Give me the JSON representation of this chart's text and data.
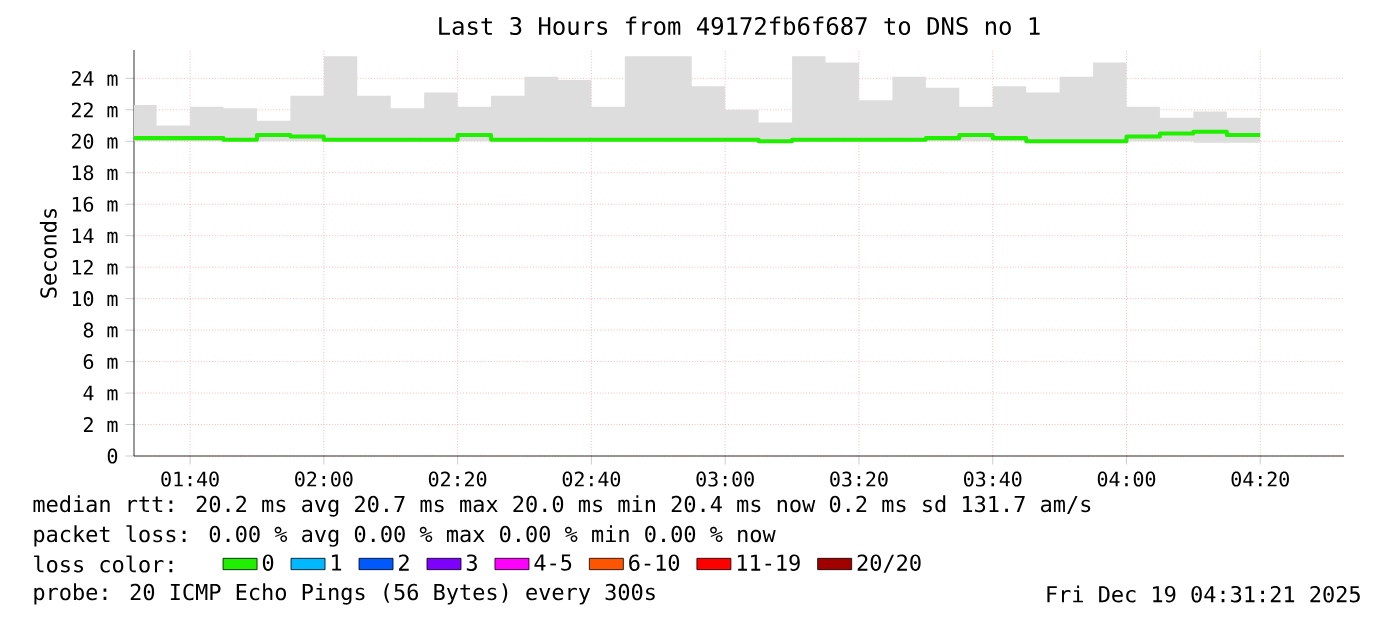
{
  "chart_data": {
    "type": "step",
    "title": "Last 3 Hours from 49172fb6f687 to DNS no 1",
    "ylabel": "Seconds",
    "x": [
      1.527,
      1.5833,
      1.6667,
      1.75,
      1.8333,
      1.9167,
      2.0,
      2.0833,
      2.1667,
      2.25,
      2.3333,
      2.4167,
      2.5,
      2.5833,
      2.6667,
      2.75,
      2.8333,
      2.9167,
      3.0,
      3.0833,
      3.1667,
      3.25,
      3.3333,
      3.4167,
      3.5,
      3.5833,
      3.6667,
      3.75,
      3.8333,
      3.9167,
      4.0,
      4.0833,
      4.1667,
      4.25,
      4.3333
    ],
    "series": [
      {
        "name": "0",
        "color": "#20f000",
        "values": [
          20.3,
          20.2,
          20.2,
          20.2,
          20.1,
          20.4,
          20.3,
          20.1,
          20.1,
          20.1,
          20.1,
          20.4,
          20.1,
          20.1,
          20.1,
          20.1,
          20.1,
          20.1,
          20.1,
          20.1,
          20.0,
          20.1,
          20.1,
          20.1,
          20.1,
          20.2,
          20.4,
          20.2,
          20.0,
          20.0,
          20.0,
          20.3,
          20.5,
          20.6,
          20.4
        ],
        "lower": [
          20.0,
          20.0,
          20.0,
          20.0,
          20.0,
          20.0,
          20.0,
          20.0,
          20.0,
          20.0,
          20.0,
          20.0,
          20.0,
          20.0,
          20.0,
          20.0,
          20.0,
          20.0,
          20.0,
          20.0,
          20.0,
          20.0,
          20.0,
          20.0,
          20.0,
          20.0,
          20.0,
          20.0,
          20.0,
          20.0,
          20.0,
          20.0,
          19.9,
          19.9,
          19.9
        ],
        "upper": [
          22.3,
          21.0,
          22.2,
          22.1,
          21.3,
          22.9,
          25.4,
          22.9,
          22.1,
          23.1,
          22.2,
          22.9,
          24.1,
          23.9,
          22.2,
          25.4,
          25.4,
          23.5,
          22.0,
          21.2,
          25.4,
          25.0,
          22.6,
          24.1,
          23.4,
          22.2,
          23.5,
          23.1,
          24.1,
          25.0,
          22.2,
          21.5,
          21.9,
          21.5,
          21.6
        ]
      },
      {
        "name": "1",
        "color": "#00b8ff",
        "values": [
          null,
          null,
          null,
          null,
          null,
          null,
          null,
          null,
          null,
          null,
          null,
          null,
          null,
          null,
          null,
          null,
          null,
          null,
          null,
          null,
          null,
          null,
          null,
          null,
          null,
          null,
          null,
          null,
          null,
          null,
          null,
          null,
          null,
          null,
          null
        ]
      },
      {
        "name": "2",
        "color": "#0059ff",
        "values": [
          null,
          null,
          null,
          null,
          null,
          null,
          null,
          null,
          null,
          null,
          null,
          null,
          null,
          null,
          null,
          null,
          null,
          null,
          null,
          null,
          null,
          null,
          null,
          null,
          null,
          null,
          null,
          null,
          null,
          null,
          null,
          null,
          null,
          null,
          null
        ]
      },
      {
        "name": "3",
        "color": "#7e00ff",
        "values": [
          null,
          null,
          null,
          null,
          null,
          null,
          null,
          null,
          null,
          null,
          null,
          null,
          null,
          null,
          null,
          null,
          null,
          null,
          null,
          null,
          null,
          null,
          null,
          null,
          null,
          null,
          null,
          null,
          null,
          null,
          null,
          null,
          null,
          null,
          null
        ]
      },
      {
        "name": "4-5",
        "color": "#ff00ff",
        "values": [
          null,
          null,
          null,
          null,
          null,
          null,
          null,
          null,
          null,
          null,
          null,
          null,
          null,
          null,
          null,
          null,
          null,
          null,
          null,
          null,
          null,
          null,
          null,
          null,
          null,
          null,
          null,
          null,
          null,
          null,
          null,
          null,
          null,
          null,
          null
        ]
      },
      {
        "name": "6-10",
        "color": "#ff5500",
        "values": [
          null,
          null,
          null,
          null,
          null,
          null,
          null,
          null,
          null,
          null,
          null,
          null,
          null,
          null,
          null,
          null,
          null,
          null,
          null,
          null,
          null,
          null,
          null,
          null,
          null,
          null,
          null,
          null,
          null,
          null,
          null,
          null,
          null,
          null,
          null
        ]
      },
      {
        "name": "11-19",
        "color": "#ff0000",
        "values": [
          null,
          null,
          null,
          null,
          null,
          null,
          null,
          null,
          null,
          null,
          null,
          null,
          null,
          null,
          null,
          null,
          null,
          null,
          null,
          null,
          null,
          null,
          null,
          null,
          null,
          null,
          null,
          null,
          null,
          null,
          null,
          null,
          null,
          null,
          null
        ]
      },
      {
        "name": "20/20",
        "color": "#a10000",
        "values": [
          null,
          null,
          null,
          null,
          null,
          null,
          null,
          null,
          null,
          null,
          null,
          null,
          null,
          null,
          null,
          null,
          null,
          null,
          null,
          null,
          null,
          null,
          null,
          null,
          null,
          null,
          null,
          null,
          null,
          null,
          null,
          null,
          null,
          null,
          null
        ]
      }
    ],
    "xlim": [
      1.527,
      4.542
    ],
    "ylim": [
      0,
      25.8
    ],
    "xticks": [
      {
        "value": 1.6667,
        "label": "01:40"
      },
      {
        "value": 2.0,
        "label": "02:00"
      },
      {
        "value": 2.3333,
        "label": "02:20"
      },
      {
        "value": 2.6667,
        "label": "02:40"
      },
      {
        "value": 3.0,
        "label": "03:00"
      },
      {
        "value": 3.3333,
        "label": "03:20"
      },
      {
        "value": 3.6667,
        "label": "03:40"
      },
      {
        "value": 4.0,
        "label": "04:00"
      },
      {
        "value": 4.3333,
        "label": "04:20"
      }
    ],
    "yticks": [
      0,
      {
        "value": 2,
        "label": "2 m"
      },
      {
        "value": 4,
        "label": "4 m"
      },
      {
        "value": 6,
        "label": "6 m"
      },
      {
        "value": 8,
        "label": "8 m"
      },
      {
        "value": 10,
        "label": "10 m"
      },
      {
        "value": 12,
        "label": "12 m"
      },
      {
        "value": 14,
        "label": "14 m"
      },
      {
        "value": 16,
        "label": "16 m"
      },
      {
        "value": 18,
        "label": "18 m"
      },
      {
        "value": 20,
        "label": "20 m"
      },
      {
        "value": 22,
        "label": "22 m"
      },
      {
        "value": 24,
        "label": "24 m"
      }
    ],
    "grid": true,
    "legend": "bottom left",
    "legend_title": "loss color:",
    "annotations": [
      "median rtt: 20.2 ms avg 20.7 ms max 20.0 ms min 20.4 ms now 0.2 ms sd 131.7 am/s",
      "packet loss: 0.00 % avg 0.00 % max 0.00 % min 0.00 % now",
      "probe: 20 ICMP Echo Pings (56 Bytes) every 300s",
      "Fri Dec 19 04:31:21 2025"
    ]
  }
}
